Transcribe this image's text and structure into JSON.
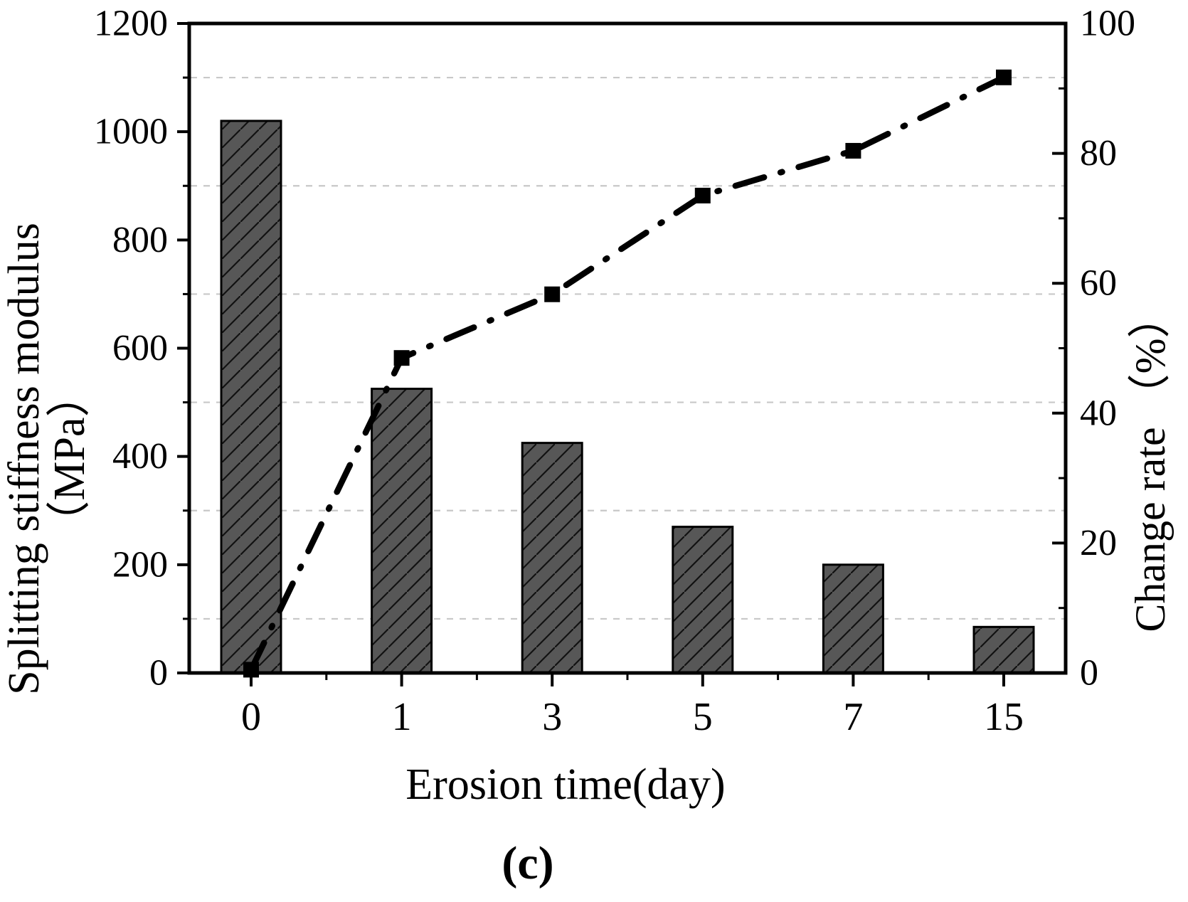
{
  "figure": {
    "caption": "(c)",
    "background": "#ffffff"
  },
  "chart_data": {
    "type": "bar+line",
    "categories": [
      "0",
      "1",
      "3",
      "5",
      "7",
      "15"
    ],
    "xlabel": "Erosion time(day)",
    "series": [
      {
        "name": "Splitting stiffness modulus",
        "type": "bar",
        "axis": "left",
        "fill": "hatched-diagonal",
        "values": [
          1020,
          525,
          425,
          270,
          200,
          85
        ]
      },
      {
        "name": "Change rate",
        "type": "line",
        "axis": "right",
        "line_style": "dash-dot",
        "marker": "filled-square",
        "values": [
          0.5,
          48.5,
          58.3,
          73.5,
          80.4,
          91.7
        ]
      }
    ],
    "y_left": {
      "label": "Splitting stiffness modulus",
      "unit": "（MPa）",
      "min": 0,
      "max": 1200,
      "major_ticks": [
        0,
        200,
        400,
        600,
        800,
        1000,
        1200
      ],
      "minor_ticks": [
        100,
        300,
        500,
        700,
        900,
        1100
      ]
    },
    "y_right": {
      "label": "Change rate （%）",
      "min": 0,
      "max": 100,
      "major_ticks": [
        0,
        20,
        40,
        60,
        80,
        100
      ],
      "minor_ticks": [
        10,
        30,
        50,
        70,
        90
      ]
    },
    "gridlines": {
      "at_left_values": [
        100,
        300,
        500,
        700,
        900,
        1100
      ],
      "style": "dashed",
      "color": "#c8c8c8"
    },
    "colors": {
      "bar_fill": "#575757",
      "hatch_line": "#111111",
      "line": "#000000",
      "frame": "#000000",
      "background": "#ffffff"
    },
    "legend": "none"
  }
}
